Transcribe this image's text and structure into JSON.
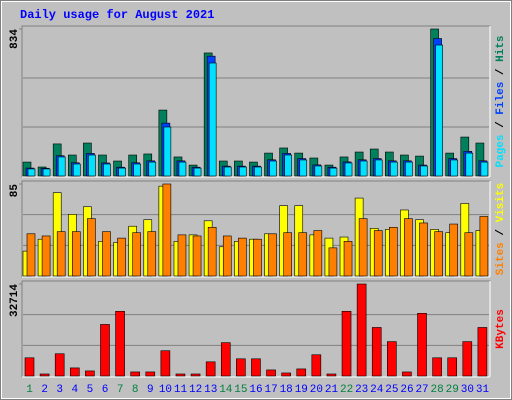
{
  "title": "Daily usage for August 2021",
  "x_axis": {
    "categories": [
      "1",
      "2",
      "3",
      "4",
      "5",
      "6",
      "7",
      "8",
      "9",
      "10",
      "11",
      "12",
      "13",
      "14",
      "15",
      "16",
      "17",
      "18",
      "19",
      "20",
      "21",
      "22",
      "23",
      "24",
      "25",
      "26",
      "27",
      "28",
      "29",
      "30",
      "31"
    ],
    "label_colors": [
      "#008040",
      "#0000ff",
      "#0000ff",
      "#0000ff",
      "#0000ff",
      "#0000ff",
      "#008040",
      "#008040",
      "#0000ff",
      "#0000ff",
      "#0000ff",
      "#0000ff",
      "#0000ff",
      "#008040",
      "#008040",
      "#0000ff",
      "#0000ff",
      "#0000ff",
      "#0000ff",
      "#0000ff",
      "#0000ff",
      "#008040",
      "#0000ff",
      "#0000ff",
      "#0000ff",
      "#0000ff",
      "#0000ff",
      "#008040",
      "#008040",
      "#0000ff",
      "#0000ff"
    ]
  },
  "legend_separator": "/",
  "chart_data": [
    {
      "type": "bar",
      "ylim": [
        0,
        834
      ],
      "yticks": [
        834
      ],
      "grid": true,
      "series": [
        {
          "name": "Pages",
          "color": "#00e0ff",
          "values": [
            40,
            40,
            108,
            68,
            119,
            68,
            45,
            68,
            79,
            278,
            79,
            45,
            641,
            51,
            51,
            51,
            85,
            119,
            91,
            57,
            45,
            74,
            85,
            91,
            79,
            79,
            57,
            743,
            91,
            130,
            79
          ]
        },
        {
          "name": "Files",
          "color": "#0040ff",
          "values": [
            45,
            44,
            115,
            75,
            128,
            74,
            50,
            75,
            86,
            300,
            86,
            50,
            680,
            56,
            56,
            56,
            92,
            128,
            99,
            63,
            50,
            80,
            92,
            99,
            86,
            86,
            62,
            780,
            99,
            140,
            86
          ]
        },
        {
          "name": "Hits",
          "color": "#00805c",
          "values": [
            79,
            51,
            182,
            119,
            187,
            119,
            85,
            119,
            125,
            374,
            108,
            62,
            698,
            85,
            85,
            79,
            130,
            159,
            130,
            102,
            62,
            108,
            136,
            153,
            136,
            119,
            113,
            834,
            130,
            221,
            187
          ]
        }
      ]
    },
    {
      "type": "bar",
      "ylim": [
        0,
        85
      ],
      "yticks": [
        85
      ],
      "grid": true,
      "series": [
        {
          "name": "Sites",
          "color": "#ff8000",
          "values": [
            39,
            37,
            41,
            41,
            53,
            41,
            35,
            40,
            41,
            85,
            38,
            37,
            45,
            37,
            35,
            34,
            39,
            40,
            40,
            42,
            26,
            32,
            53,
            42,
            45,
            53,
            49,
            41,
            48,
            40,
            55
          ]
        },
        {
          "name": "Visits",
          "color": "#ffff00",
          "values": [
            23,
            34,
            77,
            57,
            64,
            32,
            31,
            46,
            52,
            83,
            32,
            38,
            51,
            27,
            32,
            34,
            39,
            65,
            65,
            38,
            35,
            36,
            72,
            44,
            43,
            61,
            52,
            43,
            40,
            67,
            42
          ]
        }
      ]
    },
    {
      "type": "bar",
      "ylim": [
        0,
        32714
      ],
      "yticks": [
        32714
      ],
      "grid": true,
      "series": [
        {
          "name": "KBytes",
          "color": "#ff0000",
          "values": [
            6471,
            719,
            7909,
            2876,
            1798,
            18337,
            23011,
            1438,
            1438,
            8988,
            719,
            719,
            5033,
            11864,
            6111,
            6111,
            2157,
            1078,
            2516,
            7550,
            719,
            23011,
            32714,
            17257,
            12224,
            1438,
            22292,
            6471,
            6471,
            12224,
            17257
          ]
        }
      ]
    }
  ]
}
